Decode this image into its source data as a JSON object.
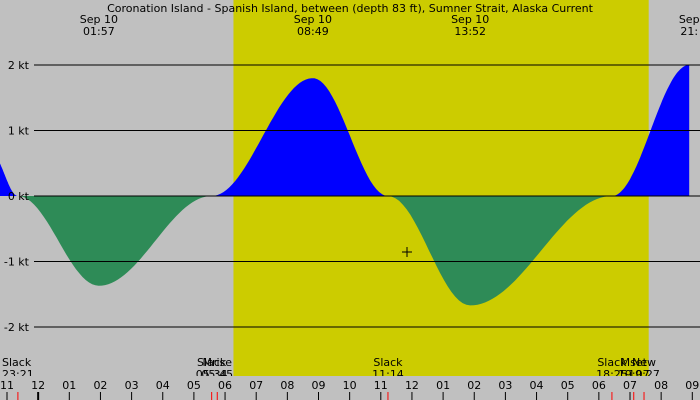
{
  "chart_data": {
    "type": "area",
    "title": "Coronation Island - Spanish Island, between (depth 83 ft), Sumner Strait, Alaska Current",
    "unit": "kt",
    "ylim": [
      -2.5,
      3.0
    ],
    "xlim": [
      -0.5,
      21.9
    ],
    "y_ticks": [
      {
        "value": 2,
        "label": "2 kt"
      },
      {
        "value": 1,
        "label": "1 kt"
      },
      {
        "value": 0,
        "label": "0 kt"
      },
      {
        "value": -1,
        "label": "-1 kt"
      },
      {
        "value": -2,
        "label": "-2 kt"
      }
    ],
    "x_tick_labels": [
      {
        "value": 0,
        "label": "11"
      },
      {
        "value": 1,
        "label": "12"
      },
      {
        "value": 2,
        "label": "01"
      },
      {
        "value": 3,
        "label": "02"
      },
      {
        "value": 4,
        "label": "03"
      },
      {
        "value": 5,
        "label": "04"
      },
      {
        "value": 6,
        "label": "05"
      },
      {
        "value": 7,
        "label": "06"
      },
      {
        "value": 8,
        "label": "07"
      },
      {
        "value": 9,
        "label": "08"
      },
      {
        "value": 10,
        "label": "09"
      },
      {
        "value": 11,
        "label": "10"
      },
      {
        "value": 12,
        "label": "11"
      },
      {
        "value": 13,
        "label": "12"
      },
      {
        "value": 14,
        "label": "01"
      },
      {
        "value": 15,
        "label": "02"
      },
      {
        "value": 16,
        "label": "03"
      },
      {
        "value": 17,
        "label": "04"
      },
      {
        "value": 18,
        "label": "05"
      },
      {
        "value": 19,
        "label": "06"
      },
      {
        "value": 20,
        "label": "07"
      },
      {
        "value": 21,
        "label": "08"
      },
      {
        "value": 22,
        "label": "09"
      }
    ],
    "daylight": {
      "start": 7.27,
      "end": 20.6
    },
    "extremes": [
      {
        "date": "Sep 10",
        "time": "01:57",
        "x": 2.95,
        "value": -1.37
      },
      {
        "date": "Sep 10",
        "time": "08:49",
        "x": 9.82,
        "value": 1.8
      },
      {
        "date": "Sep 10",
        "time": "13:52",
        "x": 14.87,
        "value": -1.67
      },
      {
        "date": "Sep",
        "time": "21:",
        "x": 21.9,
        "value": 2.0
      }
    ],
    "events": [
      {
        "label": "Slack",
        "time": "23:21",
        "x": 0.35
      },
      {
        "label": "Slack",
        "time": "05:34",
        "x": 6.57
      },
      {
        "label": "Mrise",
        "time": "05:45",
        "x": 6.75
      },
      {
        "label": "Slack",
        "time": "11:14",
        "x": 12.23
      },
      {
        "label": "Slack",
        "time": "18:25",
        "x": 19.42
      },
      {
        "label": "Mset",
        "time": "19:07",
        "x": 20.12
      },
      {
        "label": "New",
        "time": "19:27",
        "x": 20.45
      }
    ],
    "curve": [
      {
        "x": -0.5,
        "y": 0.65
      },
      {
        "x": 0.35,
        "y": 0
      },
      {
        "x": 6.57,
        "y": 0
      },
      {
        "x": 12.23,
        "y": 0
      },
      {
        "x": 19.42,
        "y": 0
      },
      {
        "x": 21.9,
        "y": 2.0
      }
    ],
    "colors": {
      "background": "#c0c0c0",
      "daylight": "#cccc00",
      "flood": "#0000ff",
      "ebb": "#2e8b57",
      "gridline": "#000000",
      "text": "#000000",
      "marker_red": "#ff0000"
    }
  }
}
